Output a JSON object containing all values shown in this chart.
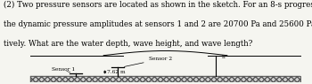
{
  "title_line1": "(2) Two pressure sensors are located as shown in the sketch. For an 8-s progressive wave,",
  "title_line2": "the dynamic pressure amplitudes at sensors 1 and 2 are 20700 Pa and 25600 Pa, respec-",
  "title_line3": "tively. What are the water depth, wave height, and wave length?",
  "sensor1_label": "Sensor 1",
  "sensor2_label": "Sensor 2",
  "depth_label": "7.62 m",
  "bg_color": "#f5f5f0",
  "text_color": "#000000",
  "font_size": 6.2,
  "sketch_font_size": 4.2
}
